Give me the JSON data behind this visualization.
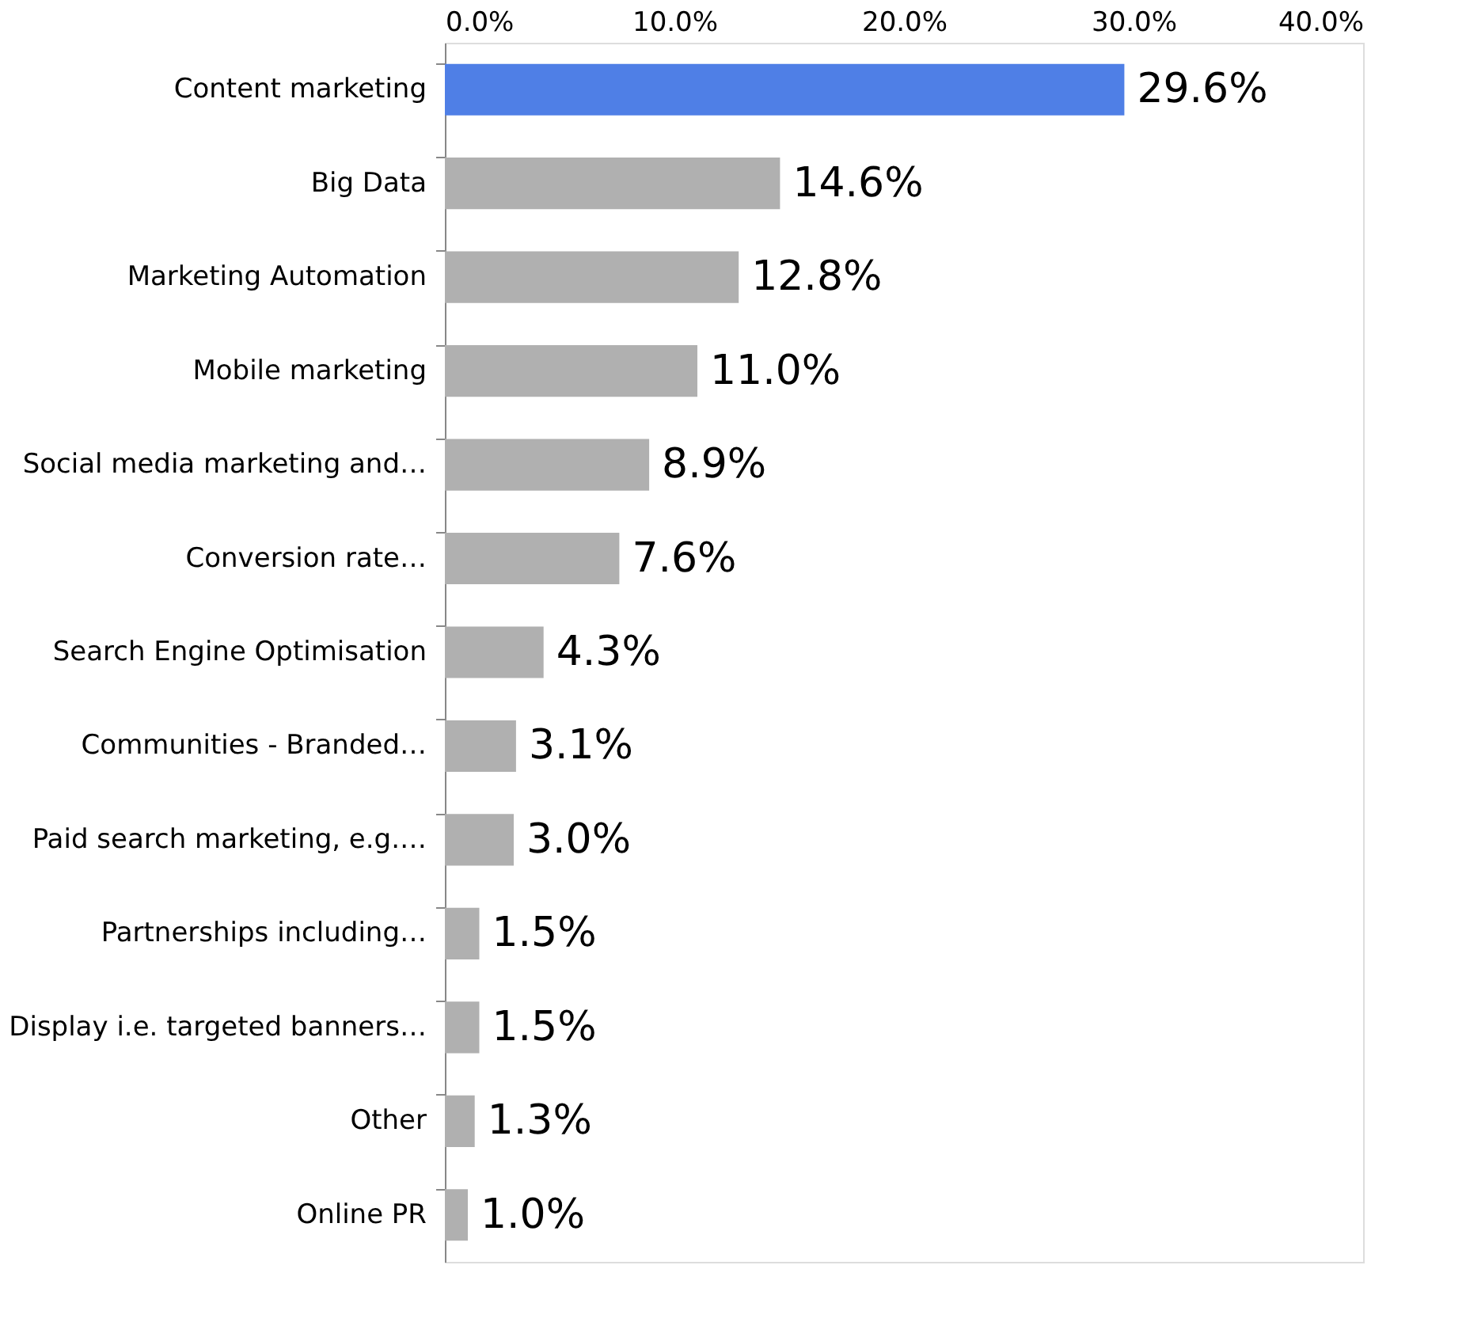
{
  "chart_data": {
    "type": "bar",
    "orientation": "horizontal",
    "categories": [
      "Content marketing",
      "Big Data",
      "Marketing Automation",
      "Mobile marketing",
      "Social media marketing and…",
      "Conversion rate…",
      "Search Engine Optimisation",
      "Communities - Branded…",
      "Paid search marketing, e.g.…",
      "Partnerships including…",
      "Display i.e. targeted banners…",
      "Other",
      "Online PR"
    ],
    "values": [
      29.6,
      14.6,
      12.8,
      11.0,
      8.9,
      7.6,
      4.3,
      3.1,
      3.0,
      1.5,
      1.5,
      1.3,
      1.0
    ],
    "value_labels": [
      "29.6%",
      "14.6%",
      "12.8%",
      "11.0%",
      "8.9%",
      "7.6%",
      "4.3%",
      "3.1%",
      "3.0%",
      "1.5%",
      "1.5%",
      "1.3%",
      "1.0%"
    ],
    "colors": [
      "#4f7fe6",
      "#b0b0b0",
      "#b0b0b0",
      "#b0b0b0",
      "#b0b0b0",
      "#b0b0b0",
      "#b0b0b0",
      "#b0b0b0",
      "#b0b0b0",
      "#b0b0b0",
      "#b0b0b0",
      "#b0b0b0",
      "#b0b0b0"
    ],
    "xlim": [
      0,
      40
    ],
    "xticks": [
      {
        "value": 0,
        "label": "0.0%"
      },
      {
        "value": 10,
        "label": "10.0%"
      },
      {
        "value": 20,
        "label": "20.0%"
      },
      {
        "value": 30,
        "label": "30.0%"
      },
      {
        "value": 40,
        "label": "40.0%"
      }
    ],
    "grid": false
  }
}
